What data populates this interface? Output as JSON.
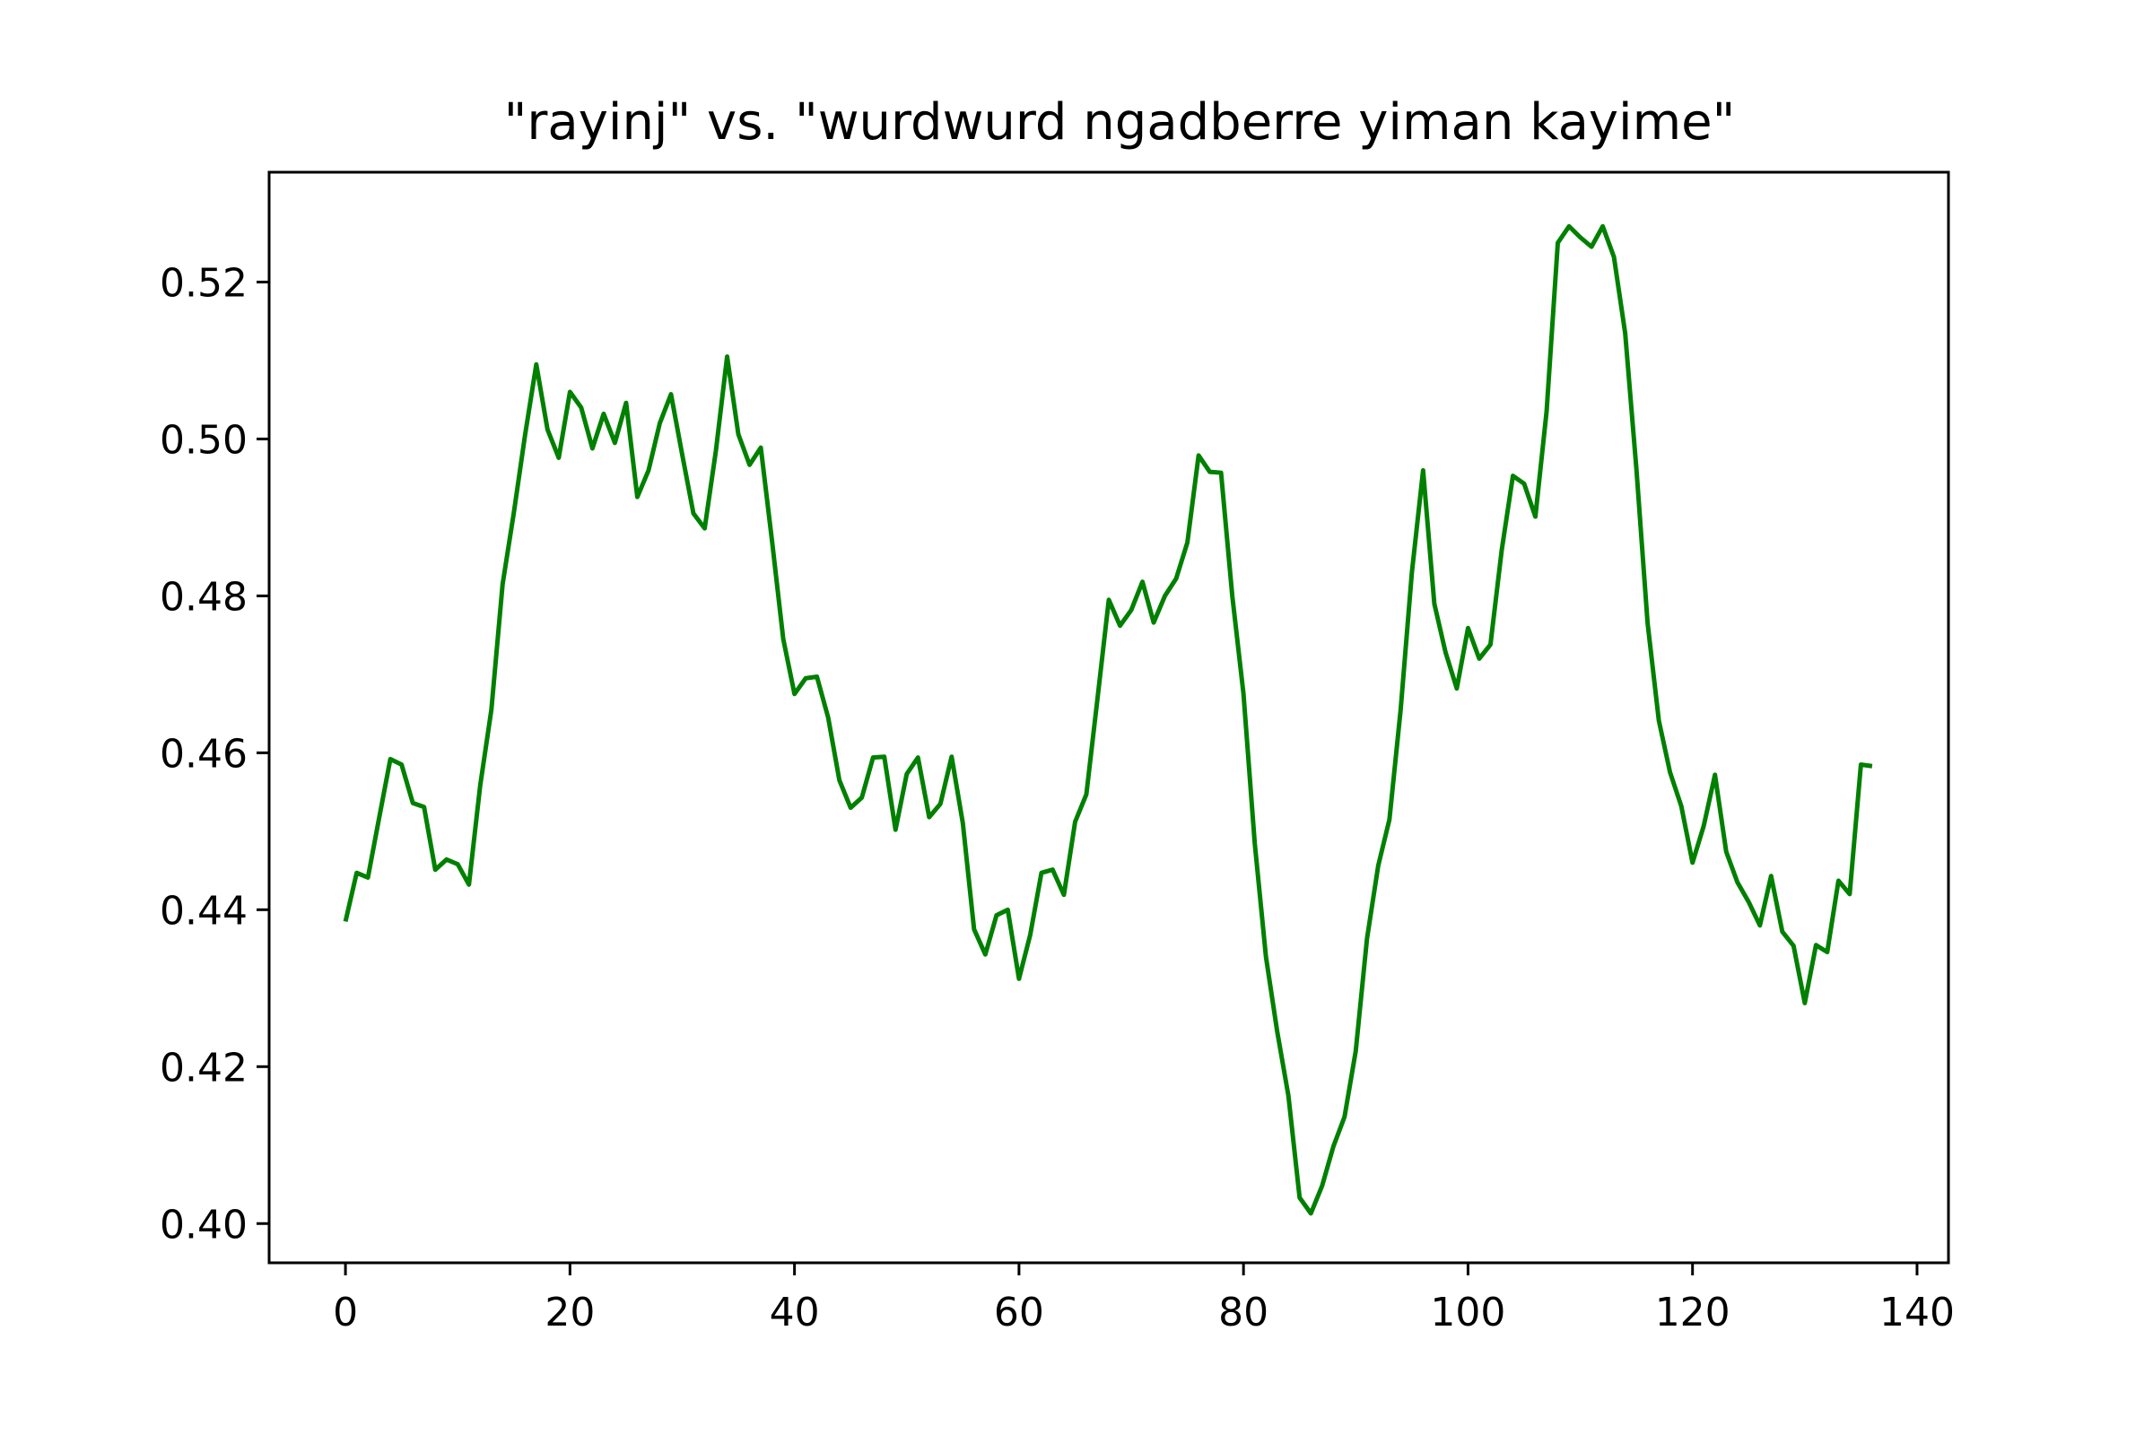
{
  "chart_data": {
    "type": "line",
    "title": "\"rayinj\" vs. \"wurdwurd ngadberre yiman kayime\"",
    "xlabel": "",
    "ylabel": "",
    "xlim": [
      -6.8,
      142.8
    ],
    "ylim": [
      0.395,
      0.534
    ],
    "grid": false,
    "legend": "none",
    "x_ticks": [
      0,
      20,
      40,
      60,
      80,
      100,
      120,
      140
    ],
    "x_tick_labels": [
      "0",
      "20",
      "40",
      "60",
      "80",
      "100",
      "120",
      "140"
    ],
    "y_ticks": [
      0.4,
      0.42,
      0.44,
      0.46,
      0.48,
      0.5,
      0.52
    ],
    "y_tick_labels": [
      "0.40",
      "0.42",
      "0.44",
      "0.46",
      "0.48",
      "0.50",
      "0.52"
    ],
    "series": [
      {
        "color": "#008000",
        "x": [
          0,
          1,
          2,
          3,
          4,
          5,
          6,
          7,
          8,
          9,
          10,
          11,
          12,
          13,
          14,
          15,
          16,
          17,
          18,
          19,
          20,
          21,
          22,
          23,
          24,
          25,
          26,
          27,
          28,
          29,
          30,
          31,
          32,
          33,
          34,
          35,
          36,
          37,
          38,
          39,
          40,
          41,
          42,
          43,
          44,
          45,
          46,
          47,
          48,
          49,
          50,
          51,
          52,
          53,
          54,
          55,
          56,
          57,
          58,
          59,
          60,
          61,
          62,
          63,
          64,
          65,
          66,
          67,
          68,
          69,
          70,
          71,
          72,
          73,
          74,
          75,
          76,
          77,
          78,
          79,
          80,
          81,
          82,
          83,
          84,
          85,
          86,
          87,
          88,
          89,
          90,
          91,
          92,
          93,
          94,
          95,
          96,
          97,
          98,
          99,
          100,
          101,
          102,
          103,
          104,
          105,
          106,
          107,
          108,
          109,
          110,
          111,
          112,
          113,
          114,
          115,
          116,
          117,
          118,
          119,
          120,
          121,
          122,
          123,
          124,
          125,
          126,
          127,
          128,
          129,
          130,
          131,
          132,
          133,
          134,
          135,
          136
        ],
        "values": [
          0.4385,
          0.4447,
          0.4441,
          0.4517,
          0.4592,
          0.4585,
          0.4536,
          0.4531,
          0.4451,
          0.4464,
          0.4458,
          0.4432,
          0.4558,
          0.4655,
          0.4815,
          0.4906,
          0.5005,
          0.5095,
          0.5012,
          0.4976,
          0.506,
          0.504,
          0.4988,
          0.5032,
          0.4995,
          0.5046,
          0.4926,
          0.496,
          0.502,
          0.5057,
          0.498,
          0.4905,
          0.4886,
          0.4985,
          0.5105,
          0.5006,
          0.4967,
          0.4989,
          0.487,
          0.4745,
          0.4675,
          0.4695,
          0.4697,
          0.4645,
          0.4565,
          0.453,
          0.4543,
          0.4594,
          0.4595,
          0.4502,
          0.4573,
          0.4594,
          0.4518,
          0.4535,
          0.4595,
          0.451,
          0.4375,
          0.4343,
          0.4393,
          0.44,
          0.4312,
          0.4368,
          0.4447,
          0.4451,
          0.4419,
          0.4512,
          0.4547,
          0.467,
          0.4795,
          0.4762,
          0.4782,
          0.4818,
          0.4766,
          0.48,
          0.4822,
          0.4868,
          0.4979,
          0.4958,
          0.4957,
          0.48,
          0.4675,
          0.4485,
          0.434,
          0.4245,
          0.4163,
          0.4033,
          0.4013,
          0.4048,
          0.4098,
          0.4136,
          0.422,
          0.4363,
          0.4456,
          0.4515,
          0.4655,
          0.483,
          0.496,
          0.479,
          0.4728,
          0.4682,
          0.4759,
          0.472,
          0.4738,
          0.4858,
          0.4953,
          0.4943,
          0.4901,
          0.5035,
          0.525,
          0.5271,
          0.5257,
          0.5245,
          0.5271,
          0.5232,
          0.5135,
          0.4962,
          0.4765,
          0.4641,
          0.4575,
          0.4532,
          0.446,
          0.4507,
          0.4572,
          0.4474,
          0.4435,
          0.441,
          0.438,
          0.4443,
          0.4372,
          0.4354,
          0.4281,
          0.4355,
          0.4346,
          0.4437,
          0.442,
          0.4585,
          0.4583
        ]
      }
    ]
  }
}
